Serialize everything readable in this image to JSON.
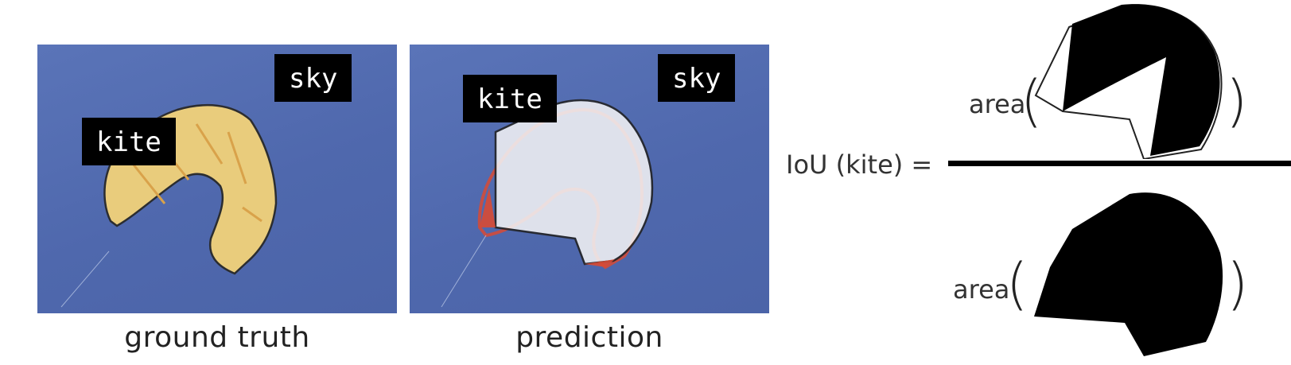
{
  "panels": {
    "ground_truth": {
      "caption": "ground truth",
      "labels": {
        "sky": "sky",
        "kite": "kite"
      }
    },
    "prediction": {
      "caption": "prediction",
      "labels": {
        "sky": "sky",
        "kite": "kite"
      }
    }
  },
  "formula": {
    "lhs": "IoU (kite) =",
    "area_word_top": "area",
    "area_word_bottom": "area",
    "open_paren": "(",
    "close_paren": ")"
  },
  "colors": {
    "sky": "#5670b5",
    "ground_truth_mask": "#f2d27a",
    "prediction_mask": "#f2f2f4",
    "kite_red": "#d84a34",
    "shape_fill": "#000000"
  }
}
